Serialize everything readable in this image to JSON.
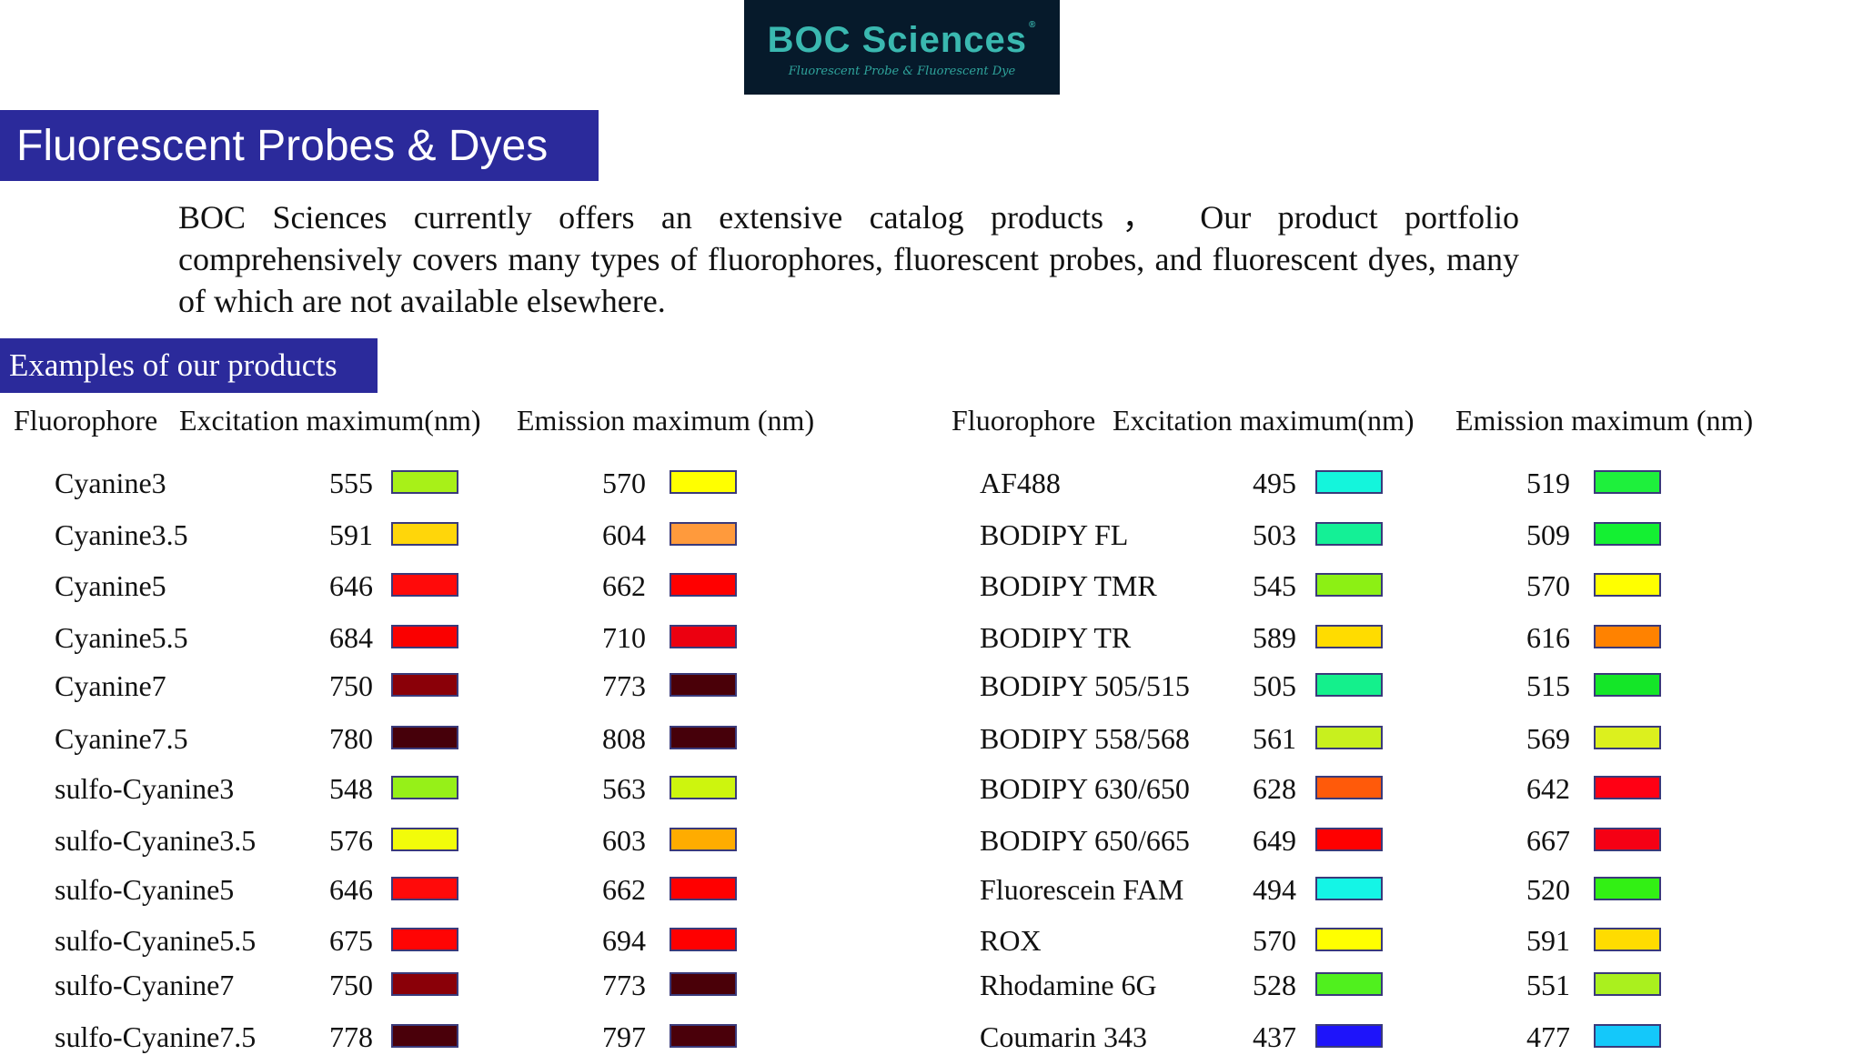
{
  "brand": {
    "name": "BOC Sciences",
    "registered": "®",
    "tagline": "Fluorescent Probe & Fluorescent Dye"
  },
  "page_title": "Fluorescent Probes & Dyes",
  "intro": "BOC Sciences currently offers an extensive catalog products， Our product portfolio comprehensively covers many types of fluorophores, fluorescent probes, and fluorescent dyes, many of which are not available elsewhere.",
  "section_title": "Examples of our products",
  "headers": {
    "fluorophore": "Fluorophore",
    "excitation": "Excitation maximum(nm)",
    "emission": "Emission maximum (nm)"
  },
  "colors": {
    "banner": "#2b2a9b",
    "logo_bg": "#061a2b",
    "logo_text": "#3ab8b0"
  },
  "tables": [
    {
      "rows": [
        {
          "name": "Cyanine3",
          "ex": "555",
          "ex_color": "#a8f018",
          "em": "570",
          "em_color": "#ffff00"
        },
        {
          "name": "Cyanine3.5",
          "ex": "591",
          "ex_color": "#ffd60a",
          "em": "604",
          "em_color": "#ff9a3c"
        },
        {
          "name": "Cyanine5",
          "ex": "646",
          "ex_color": "#ff0a0a",
          "em": "662",
          "em_color": "#ff0000"
        },
        {
          "name": "Cyanine5.5",
          "ex": "684",
          "ex_color": "#fa0000",
          "em": "710",
          "em_color": "#ec0010"
        },
        {
          "name": "Cyanine7",
          "ex": "750",
          "ex_color": "#8a0008",
          "em": "773",
          "em_color": "#4a0008"
        },
        {
          "name": "Cyanine7.5",
          "ex": "780",
          "ex_color": "#46000a",
          "em": "808",
          "em_color": "#46000a"
        },
        {
          "name": "sulfo-Cyanine3",
          "ex": "548",
          "ex_color": "#96f018",
          "em": "563",
          "em_color": "#cdf50e"
        },
        {
          "name": "sulfo-Cyanine3.5",
          "ex": "576",
          "ex_color": "#f2fc0a",
          "em": "603",
          "em_color": "#ffac00"
        },
        {
          "name": "sulfo-Cyanine5",
          "ex": "646",
          "ex_color": "#ff0a0a",
          "em": "662",
          "em_color": "#ff0000"
        },
        {
          "name": "sulfo-Cyanine5.5",
          "ex": "675",
          "ex_color": "#ff0404",
          "em": "694",
          "em_color": "#ff0000"
        },
        {
          "name": "sulfo-Cyanine7",
          "ex": "750",
          "ex_color": "#8a0008",
          "em": "773",
          "em_color": "#4a0008"
        },
        {
          "name": "sulfo-Cyanine7.5",
          "ex": "778",
          "ex_color": "#4a000a",
          "em": "797",
          "em_color": "#4a000a"
        }
      ]
    },
    {
      "rows": [
        {
          "name": "AF488",
          "ex": "495",
          "ex_color": "#14f5dc",
          "em": "519",
          "em_color": "#1ef03c"
        },
        {
          "name": "BODIPY FL",
          "ex": "503",
          "ex_color": "#14f096",
          "em": "509",
          "em_color": "#14f032"
        },
        {
          "name": "BODIPY TMR",
          "ex": "545",
          "ex_color": "#8cf014",
          "em": "570",
          "em_color": "#ffff00"
        },
        {
          "name": "BODIPY TR",
          "ex": "589",
          "ex_color": "#ffdc00",
          "em": "616",
          "em_color": "#ff8200"
        },
        {
          "name": "BODIPY 505/515",
          "ex": "505",
          "ex_color": "#14f08c",
          "em": "515",
          "em_color": "#14e628"
        },
        {
          "name": "BODIPY 558/568",
          "ex": "561",
          "ex_color": "#c8f01e",
          "em": "569",
          "em_color": "#dcf01e"
        },
        {
          "name": "BODIPY 630/650",
          "ex": "628",
          "ex_color": "#ff5a0a",
          "em": "642",
          "em_color": "#ff0014"
        },
        {
          "name": "BODIPY 650/665",
          "ex": "649",
          "ex_color": "#ff0000",
          "em": "667",
          "em_color": "#f50014"
        },
        {
          "name": "Fluorescein FAM",
          "ex": "494",
          "ex_color": "#14f5e6",
          "em": "520",
          "em_color": "#32f014"
        },
        {
          "name": "ROX",
          "ex": "570",
          "ex_color": "#ffff00",
          "em": "591",
          "em_color": "#ffdc00"
        },
        {
          "name": "Rhodamine 6G",
          "ex": "528",
          "ex_color": "#50f01e",
          "em": "551",
          "em_color": "#aaf01e"
        },
        {
          "name": "Coumarin 343",
          "ex": "437",
          "ex_color": "#1e14fa",
          "em": "477",
          "em_color": "#14c8fa"
        }
      ]
    }
  ]
}
